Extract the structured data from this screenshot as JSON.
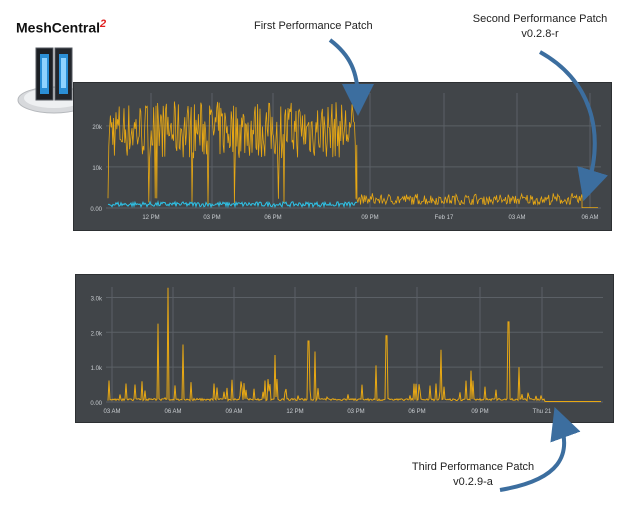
{
  "brand": {
    "name": "MeshCentral",
    "superscript": "2"
  },
  "annotations": {
    "first": "First Performance Patch",
    "second_line1": "Second Performance Patch",
    "second_line2": "v0.2.8-r",
    "third_line1": "Third Performance Patch",
    "third_line2": "v0.2.9-a"
  },
  "colors": {
    "panel_bg": "#414549",
    "grid": "#5b6066",
    "tick": "#c9cdd1",
    "series_orange": "#e8a814",
    "series_blue": "#2ec3e8",
    "arrow": "#3c6e9f"
  },
  "chart_data": [
    {
      "type": "line",
      "title": "",
      "xlabel": "",
      "ylabel": "",
      "x_ticks": [
        "12 PM",
        "03 PM",
        "06 PM",
        "09 PM",
        "Feb 17",
        "03 AM",
        "06 AM"
      ],
      "y_ticks": [
        "0.00",
        "10k",
        "20k"
      ],
      "ylim": [
        0,
        28000
      ],
      "grid": true,
      "series": [
        {
          "color": "orange",
          "segments": [
            {
              "range": [
                "start",
                "08:40 PM"
              ],
              "low": 1000,
              "high": 26000,
              "typical": 19000,
              "note_values": "dense noisy traffic approx 12k-26k with dips to ~1k"
            },
            {
              "range": [
                "08:40 PM",
                "06 AM"
              ],
              "low": 800,
              "high": 3800,
              "typical": 2200
            },
            {
              "range": [
                "06 AM",
                "end"
              ],
              "low": 0,
              "high": 300,
              "typical": 100
            }
          ]
        },
        {
          "color": "blue",
          "segments": [
            {
              "range": [
                "start",
                "08:40 PM"
              ],
              "low": 300,
              "high": 1500,
              "typical": 800
            }
          ]
        }
      ]
    },
    {
      "type": "line",
      "title": "",
      "xlabel": "",
      "ylabel": "",
      "x_ticks": [
        "03 AM",
        "06 AM",
        "09 AM",
        "12 PM",
        "03 PM",
        "06 PM",
        "09 PM",
        "Thu 21"
      ],
      "y_ticks": [
        "0.00",
        "1.0k",
        "2.0k",
        "3.0k"
      ],
      "ylim": [
        0,
        3300
      ],
      "grid": true,
      "series": [
        {
          "color": "orange",
          "baseline": 40,
          "spikes": [
            {
              "x": "05:15 AM",
              "y": 2250
            },
            {
              "x": "05:45 AM",
              "y": 3280
            },
            {
              "x": "06:30 AM",
              "y": 1650
            },
            {
              "x": "11:00 AM",
              "y": 1350
            },
            {
              "x": "12:40 PM",
              "y": 1750
            },
            {
              "x": "01:00 PM",
              "y": 1450
            },
            {
              "x": "04:00 PM",
              "y": 1050
            },
            {
              "x": "04:30 PM",
              "y": 1900
            },
            {
              "x": "07:10 PM",
              "y": 1500
            },
            {
              "x": "08:40 PM",
              "y": 900
            },
            {
              "x": "10:30 PM",
              "y": 2300
            },
            {
              "x": "11:00 PM",
              "y": 1000
            }
          ]
        }
      ]
    }
  ]
}
